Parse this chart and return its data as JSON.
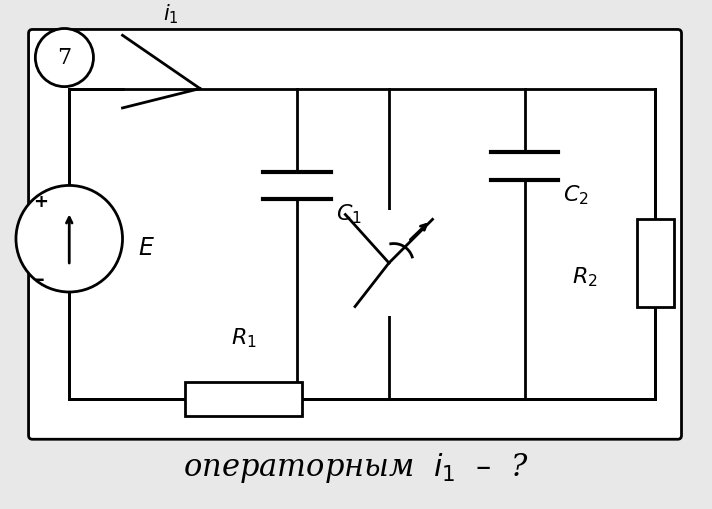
{
  "bg": "#e8e8e8",
  "fg": "#000000",
  "lw": 2.0,
  "lw_thin": 1.5
}
